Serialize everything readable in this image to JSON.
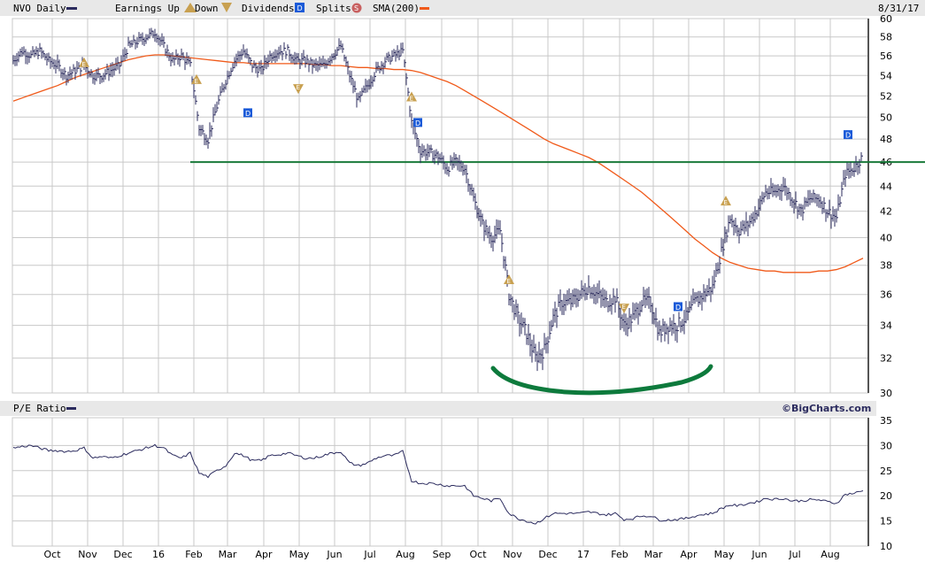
{
  "header": {
    "symbol_label": "NVO Daily",
    "earnings_label": "Earnings Up",
    "down_label": "Down",
    "dividends_label": "Dividends",
    "splits_label": "Splits",
    "sma_label": "SMA(200)",
    "date": "8/31/17",
    "earnings_glyph": "E",
    "dividend_glyph": "D",
    "split_glyph": "S"
  },
  "pe_header": {
    "label": "P/E Ratio",
    "brand": "©BigCharts.com"
  },
  "colors": {
    "price": "#2b2b5e",
    "sma": "#f05a1a",
    "support": "#1a7a3a",
    "annotation": "#0d7a3c",
    "earnings": "#c8a050",
    "dividend": "#1a5ad8",
    "split": "#c86060",
    "grid": "#c8c8c8",
    "header_bg": "#e8e8e8"
  },
  "chart_data": [
    {
      "type": "line",
      "title": "NVO Daily",
      "scale": "log",
      "interval": "weekly",
      "ylim": [
        30,
        60
      ],
      "yticks": [
        "60",
        "58",
        "56",
        "54",
        "52",
        "50",
        "48",
        "46",
        "44",
        "42",
        "40",
        "38",
        "36",
        "34",
        "32",
        "30"
      ],
      "xticks": [
        "Oct",
        "Nov",
        "Dec",
        "16",
        "Feb",
        "Mar",
        "Apr",
        "May",
        "Jun",
        "Jul",
        "Aug",
        "Sep",
        "Oct",
        "Nov",
        "Dec",
        "17",
        "Feb",
        "Mar",
        "Apr",
        "May",
        "Jun",
        "Jul",
        "Aug"
      ],
      "price": [
        55.5,
        56.5,
        56,
        56.5,
        55.5,
        55,
        54,
        54.5,
        55,
        54,
        54,
        54.5,
        55,
        57,
        57.5,
        58,
        58.5,
        57,
        55.5,
        56,
        55,
        49,
        48,
        51,
        53.5,
        55.5,
        56.5,
        55,
        54.5,
        56,
        56.5,
        56.5,
        55.5,
        55.5,
        55,
        55,
        56,
        57,
        54,
        51.5,
        53,
        54.5,
        55.5,
        56,
        56.5,
        49.5,
        47,
        46.8,
        46.5,
        45.5,
        46,
        45.5,
        43,
        41,
        40,
        40.5,
        36,
        34.5,
        33.5,
        32,
        32.5,
        34.5,
        35.5,
        35.5,
        36,
        36.5,
        36,
        35.5,
        35.8,
        34,
        34.5,
        35.5,
        35.5,
        33.5,
        34,
        34,
        34.5,
        35.5,
        36,
        36.5,
        39,
        41.5,
        40.5,
        41,
        42,
        43.5,
        43.5,
        44,
        43,
        42,
        43,
        43,
        42,
        41.5,
        45,
        45.5,
        46.5
      ],
      "sma200": [
        51.5,
        51.8,
        52.1,
        52.4,
        52.7,
        53.0,
        53.4,
        53.8,
        54.1,
        54.4,
        54.7,
        55.0,
        55.3,
        55.6,
        55.8,
        56.0,
        56.1,
        56.1,
        56.0,
        55.9,
        55.8,
        55.7,
        55.6,
        55.5,
        55.4,
        55.3,
        55.3,
        55.2,
        55.2,
        55.2,
        55.2,
        55.2,
        55.2,
        55.2,
        55.1,
        55.1,
        55.0,
        55.0,
        54.9,
        54.8,
        54.8,
        54.7,
        54.7,
        54.6,
        54.6,
        54.5,
        54.3,
        54.0,
        53.7,
        53.4,
        53.0,
        52.5,
        52.0,
        51.5,
        51.0,
        50.5,
        50.0,
        49.5,
        49.0,
        48.5,
        48.0,
        47.6,
        47.3,
        47.0,
        46.7,
        46.4,
        46.0,
        45.5,
        45.0,
        44.5,
        44.0,
        43.5,
        42.9,
        42.3,
        41.7,
        41.1,
        40.5,
        39.9,
        39.4,
        38.9,
        38.5,
        38.2,
        38.0,
        37.8,
        37.7,
        37.6,
        37.6,
        37.5,
        37.5,
        37.5,
        37.5,
        37.6,
        37.6,
        37.7,
        37.9,
        38.2,
        38.5
      ],
      "support_line": 46,
      "events": [
        {
          "type": "earnings_up",
          "week": 8,
          "price": 55.3
        },
        {
          "type": "earnings_up",
          "week": 20.7,
          "price": 53.6
        },
        {
          "type": "earnings_down",
          "week": 32.2,
          "price": 52.7
        },
        {
          "type": "earnings_up",
          "week": 45,
          "price": 51.9
        },
        {
          "type": "earnings_up",
          "week": 56,
          "price": 37.0
        },
        {
          "type": "earnings_down",
          "week": 69,
          "price": 35.1
        },
        {
          "type": "earnings_up",
          "week": 80.5,
          "price": 42.8
        },
        {
          "type": "dividend",
          "week": 26.5,
          "price": 50.4
        },
        {
          "type": "dividend",
          "week": 45.7,
          "price": 49.5
        },
        {
          "type": "dividend",
          "week": 75.1,
          "price": 35.2
        },
        {
          "type": "dividend",
          "week": 94.3,
          "price": 48.4
        }
      ]
    },
    {
      "type": "line",
      "title": "P/E Ratio",
      "ylim": [
        10,
        35
      ],
      "yticks": [
        "35",
        "30",
        "25",
        "20",
        "15",
        "10"
      ],
      "values": [
        29.5,
        29.8,
        30,
        29.5,
        29,
        29,
        28.8,
        29,
        29.5,
        27.5,
        27.8,
        27.5,
        28,
        28.5,
        29,
        29.5,
        30,
        29.5,
        28,
        27.5,
        28.5,
        24.5,
        23.8,
        25,
        26,
        28.5,
        28,
        27,
        27,
        28,
        28.2,
        28.5,
        28,
        27.5,
        27.5,
        28,
        28.5,
        28.8,
        26.5,
        26,
        26.5,
        27.5,
        28,
        28,
        28.8,
        23,
        22.5,
        22.5,
        22.3,
        22,
        22,
        22,
        20,
        19.5,
        19,
        19.5,
        16.5,
        15.5,
        15,
        14.5,
        15.5,
        16.5,
        16.5,
        16.5,
        16.5,
        16.8,
        16.5,
        16.2,
        16.5,
        15.3,
        15.5,
        16,
        16,
        15.2,
        15.2,
        15.3,
        15.5,
        16,
        16.3,
        16.5,
        17.5,
        18.2,
        18,
        18.5,
        18.8,
        19.5,
        19.3,
        19.5,
        19,
        19,
        19.2,
        19.2,
        18.8,
        18.5,
        20.3,
        20.5,
        21
      ]
    }
  ]
}
